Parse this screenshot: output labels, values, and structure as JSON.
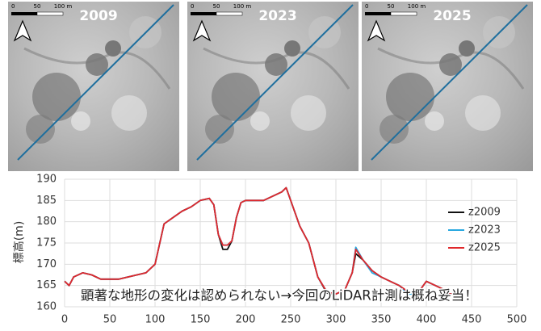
{
  "maps": [
    {
      "year": "2009"
    },
    {
      "year": "2023"
    },
    {
      "year": "2025"
    }
  ],
  "scale_labels": [
    "0",
    "50",
    "100 m"
  ],
  "chart_data": {
    "type": "line",
    "y_label": "標高(m)",
    "annotation": "顕著な地形の変化は認められない→今回のLiDAR計測は概ね妥当！",
    "x": [
      0,
      5,
      10,
      20,
      30,
      40,
      50,
      60,
      70,
      80,
      90,
      100,
      110,
      120,
      130,
      140,
      150,
      160,
      165,
      170,
      175,
      180,
      185,
      190,
      195,
      200,
      210,
      220,
      230,
      240,
      245,
      250,
      255,
      260,
      270,
      280,
      290,
      300,
      310,
      318,
      322,
      330,
      340,
      350,
      360,
      370,
      380,
      390,
      400,
      410,
      420,
      425,
      430,
      435
    ],
    "series": [
      {
        "name": "z2009",
        "color": "#111111",
        "values": [
          166,
          165,
          167,
          168,
          167.5,
          166.5,
          166.5,
          166.5,
          167,
          167.5,
          168,
          170,
          179.5,
          181,
          182.5,
          183.5,
          185,
          185.5,
          184,
          177,
          173.5,
          173.5,
          175.5,
          181,
          184.5,
          185,
          185,
          185,
          186,
          187,
          188,
          185,
          182,
          179,
          175,
          167,
          163.2,
          163,
          164,
          168,
          172.5,
          171,
          168.5,
          167,
          166,
          165,
          163.5,
          163,
          166,
          165,
          164,
          163,
          163,
          163.5
        ]
      },
      {
        "name": "z2023",
        "color": "#29a8e0",
        "values": [
          166,
          165,
          167,
          168,
          167.5,
          166.5,
          166.5,
          166.5,
          167,
          167.5,
          168,
          170,
          179.5,
          181,
          182.5,
          183.5,
          185,
          185.5,
          184,
          177,
          174.5,
          174.5,
          175.5,
          181,
          184.5,
          185,
          185,
          185,
          186,
          187,
          188,
          185,
          182,
          179,
          175,
          167,
          163.5,
          163,
          164,
          168,
          174,
          171,
          168,
          167,
          166,
          165,
          163,
          163,
          166,
          165,
          164,
          163,
          163,
          163.5
        ]
      },
      {
        "name": "z2025",
        "color": "#e0282c",
        "values": [
          166,
          165,
          167,
          168,
          167.5,
          166.5,
          166.5,
          166.5,
          167,
          167.5,
          168,
          170,
          179.5,
          181,
          182.5,
          183.5,
          185,
          185.5,
          184,
          177,
          174.5,
          174.5,
          175.5,
          181,
          184.5,
          185,
          185,
          185,
          186,
          187,
          188,
          185,
          182,
          179,
          175,
          167,
          163.5,
          163,
          164,
          168,
          173.5,
          171,
          168.5,
          167,
          166,
          165,
          163.5,
          163,
          166,
          165,
          164,
          163,
          163,
          163.5
        ]
      }
    ],
    "xlim": [
      0,
      500
    ],
    "xticks": [
      0,
      50,
      100,
      150,
      200,
      250,
      300,
      350,
      400,
      450,
      500
    ],
    "ylim": [
      160,
      190
    ],
    "yticks": [
      160,
      165,
      170,
      175,
      180,
      185,
      190
    ],
    "grid": true
  }
}
